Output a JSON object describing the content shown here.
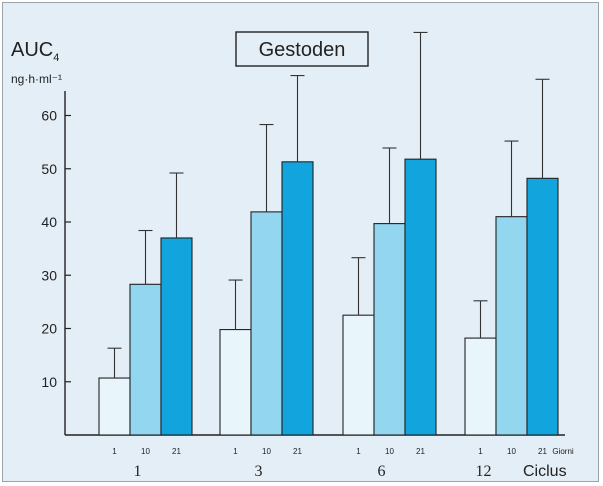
{
  "chart_data": {
    "type": "bar",
    "title": "Gestoden",
    "ylabel": "AUC",
    "ylabel_subscript": "4",
    "yunit": "ng·h·ml⁻¹",
    "ylim": [
      0,
      60
    ],
    "yticks": [
      10,
      20,
      30,
      40,
      50,
      60
    ],
    "group_axis_label": "Ciclus",
    "bar_axis_label": "Giorni",
    "groups": [
      "1",
      "3",
      "6",
      "12"
    ],
    "bar_labels": [
      "1",
      "10",
      "21"
    ],
    "series": [
      {
        "name": "1",
        "values": [
          10.7,
          19.8,
          22.5,
          18.2
        ],
        "errors": [
          5.6,
          9.3,
          10.8,
          7.0
        ]
      },
      {
        "name": "10",
        "values": [
          28.3,
          41.9,
          39.7,
          41.0
        ],
        "errors": [
          10.1,
          16.4,
          14.2,
          14.2
        ]
      },
      {
        "name": "21",
        "values": [
          37.0,
          51.3,
          51.8,
          48.2
        ],
        "errors": [
          12.2,
          16.2,
          23.8,
          18.6
        ]
      }
    ],
    "colors": [
      "#e8f6fb",
      "#93d6ef",
      "#12a5dd"
    ],
    "grid": false,
    "error_bars": true
  }
}
